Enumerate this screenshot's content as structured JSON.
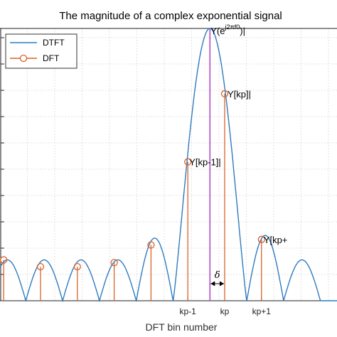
{
  "chart_data": {
    "type": "line",
    "title": "The magnitude of a complex exponential signal",
    "xlabel": "DFT bin number",
    "ylabel": "",
    "xlim": [
      -6.1,
      3.05
    ],
    "ylim": [
      0,
      1.0
    ],
    "grid": "dotted",
    "legend": {
      "placement": "top-left",
      "entries": [
        "DTFT",
        "DFT"
      ]
    },
    "x_ticks": [
      {
        "x": -1,
        "label": "kp-1"
      },
      {
        "x": 0,
        "label": "kp"
      },
      {
        "x": 1,
        "label": "kp+1"
      }
    ],
    "dtft": {
      "name": "DTFT",
      "peak_x": -0.4,
      "main_lobe_half_width": 1.0,
      "side_lobe_peaks": [
        {
          "x": -5.9,
          "y": 0.15
        },
        {
          "x": -4.9,
          "y": 0.15
        },
        {
          "x": -3.9,
          "y": 0.15
        },
        {
          "x": -2.9,
          "y": 0.15
        },
        {
          "x": -1.9,
          "y": 0.23
        },
        {
          "x": 1.1,
          "y": 0.24
        },
        {
          "x": 2.1,
          "y": 0.15
        }
      ],
      "color": "#2f7bbf"
    },
    "dft": {
      "name": "DFT",
      "x": [
        -6,
        -5,
        -4,
        -3,
        -2,
        -1,
        0,
        1
      ],
      "y": [
        0.15,
        0.125,
        0.125,
        0.14,
        0.205,
        0.51,
        0.76,
        0.225
      ],
      "color": "#d9622b"
    },
    "peak_line": {
      "x": -0.4,
      "color": "#b04cc8"
    },
    "annotations": [
      {
        "text": "Y(e",
        "sup": "j2πf0",
        "tail": ")|",
        "at_bin": -0.4
      },
      {
        "text": "Y[kp]|",
        "at_bin": 0
      },
      {
        "text": "Y[kp-1]|",
        "at_bin": -1
      },
      {
        "text": "Y[kp+",
        "at_bin": 1
      }
    ],
    "delta_label": "δ"
  }
}
